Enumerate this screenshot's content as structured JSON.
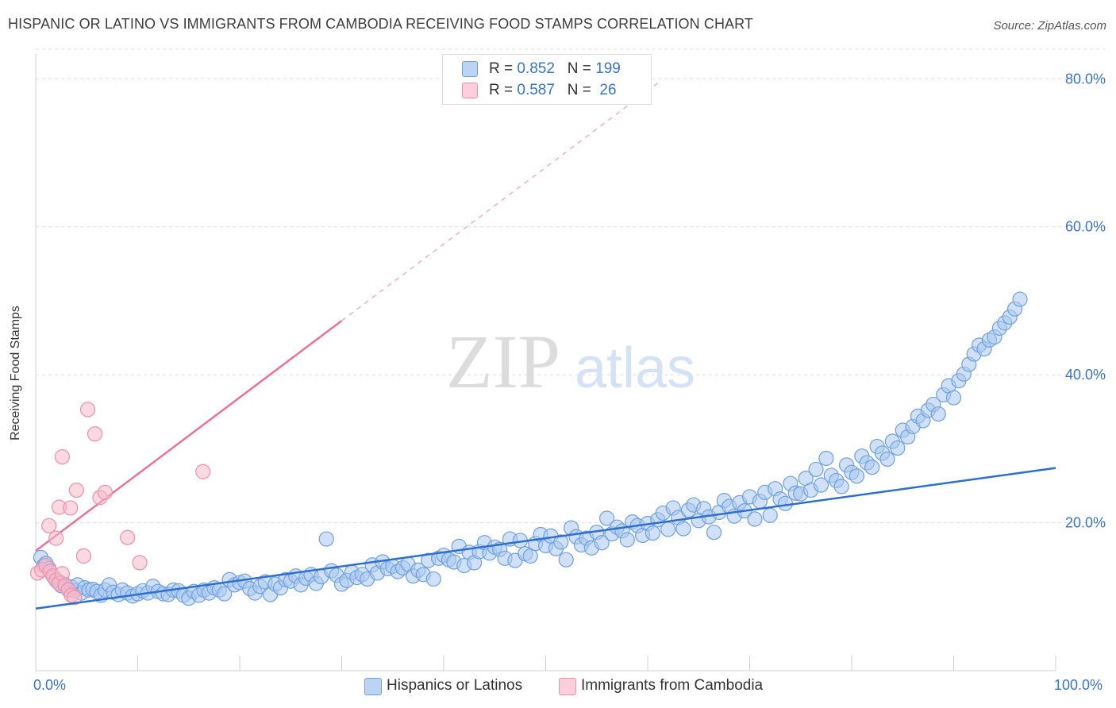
{
  "header": {
    "title": "HISPANIC OR LATINO VS IMMIGRANTS FROM CAMBODIA RECEIVING FOOD STAMPS CORRELATION CHART",
    "source": "Source: ZipAtlas.com"
  },
  "watermark": {
    "zip": "ZIP",
    "atlas": "atlas"
  },
  "legend": {
    "rows": [
      {
        "r_label": "R = ",
        "r_value": "0.852",
        "n_label": "N = ",
        "n_value": "199",
        "color": "#a9c8f0"
      },
      {
        "r_label": "R = ",
        "r_value": "0.587",
        "n_label": "N = ",
        "n_value": " 26",
        "color": "#f7b9ca"
      }
    ]
  },
  "chart_data": {
    "type": "scatter",
    "title": "HISPANIC OR LATINO VS IMMIGRANTS FROM CAMBODIA RECEIVING FOOD STAMPS CORRELATION CHART",
    "xlabel": "",
    "ylabel": "Receiving Food Stamps",
    "xlim": [
      0,
      100
    ],
    "ylim": [
      0,
      84
    ],
    "x_tick_labels": [
      "0.0%",
      "100.0%"
    ],
    "y_ticks": [
      20,
      40,
      60,
      80
    ],
    "y_tick_labels": [
      "20.0%",
      "40.0%",
      "60.0%",
      "80.0%"
    ],
    "grid": "horizontal dashed",
    "legend_position": "top-center",
    "series": [
      {
        "name": "Hispanics or Latinos",
        "color": "#6fa0dd",
        "fill": "#a9c8f0",
        "trendline": {
          "x": [
            0,
            100
          ],
          "y": [
            8.4,
            27.4
          ],
          "style": "solid"
        },
        "points": [
          [
            0.5,
            15.3
          ],
          [
            0.8,
            14.2
          ],
          [
            1.0,
            14.5
          ],
          [
            1.3,
            13.8
          ],
          [
            1.8,
            12.6
          ],
          [
            2.2,
            12.1
          ],
          [
            2.5,
            11.5
          ],
          [
            2.8,
            11.7
          ],
          [
            3.2,
            11.0
          ],
          [
            3.5,
            11.3
          ],
          [
            3.8,
            10.8
          ],
          [
            4.1,
            11.6
          ],
          [
            4.5,
            10.5
          ],
          [
            4.8,
            11.2
          ],
          [
            5.2,
            10.9
          ],
          [
            5.6,
            11.0
          ],
          [
            6.0,
            10.7
          ],
          [
            6.4,
            10.2
          ],
          [
            6.8,
            10.9
          ],
          [
            7.2,
            11.6
          ],
          [
            7.6,
            10.6
          ],
          [
            8.1,
            10.3
          ],
          [
            8.5,
            10.9
          ],
          [
            9.0,
            10.5
          ],
          [
            9.5,
            10.1
          ],
          [
            10.0,
            10.4
          ],
          [
            10.5,
            10.8
          ],
          [
            11.0,
            10.5
          ],
          [
            11.5,
            11.4
          ],
          [
            12.0,
            10.7
          ],
          [
            12.5,
            10.4
          ],
          [
            13.0,
            10.3
          ],
          [
            13.5,
            10.9
          ],
          [
            14.0,
            10.8
          ],
          [
            14.5,
            10.2
          ],
          [
            15.0,
            9.8
          ],
          [
            15.5,
            10.7
          ],
          [
            16.0,
            10.2
          ],
          [
            16.5,
            10.9
          ],
          [
            17.0,
            10.5
          ],
          [
            17.5,
            11.2
          ],
          [
            18.0,
            10.9
          ],
          [
            18.5,
            10.4
          ],
          [
            19.0,
            12.3
          ],
          [
            19.5,
            11.6
          ],
          [
            20.0,
            11.9
          ],
          [
            20.5,
            12.1
          ],
          [
            21.0,
            11.1
          ],
          [
            21.5,
            10.5
          ],
          [
            22.0,
            11.4
          ],
          [
            22.5,
            12.0
          ],
          [
            23.0,
            10.3
          ],
          [
            23.5,
            11.7
          ],
          [
            24.0,
            11.2
          ],
          [
            24.5,
            12.3
          ],
          [
            25.0,
            12.1
          ],
          [
            25.5,
            12.8
          ],
          [
            26.0,
            11.6
          ],
          [
            26.5,
            12.5
          ],
          [
            27.0,
            13.0
          ],
          [
            27.5,
            11.8
          ],
          [
            28.0,
            12.7
          ],
          [
            28.5,
            17.8
          ],
          [
            29.0,
            13.5
          ],
          [
            29.5,
            12.9
          ],
          [
            30.0,
            11.7
          ],
          [
            30.5,
            12.2
          ],
          [
            31.0,
            13.3
          ],
          [
            31.5,
            12.6
          ],
          [
            32.0,
            13.0
          ],
          [
            32.5,
            12.4
          ],
          [
            33.0,
            14.3
          ],
          [
            33.5,
            13.2
          ],
          [
            34.0,
            14.7
          ],
          [
            34.5,
            13.8
          ],
          [
            35.0,
            14.1
          ],
          [
            35.5,
            13.4
          ],
          [
            36.0,
            13.9
          ],
          [
            36.5,
            14.4
          ],
          [
            37.0,
            12.8
          ],
          [
            37.5,
            13.6
          ],
          [
            38.0,
            13.0
          ],
          [
            38.5,
            14.9
          ],
          [
            39.0,
            12.4
          ],
          [
            39.5,
            15.2
          ],
          [
            40.0,
            15.6
          ],
          [
            40.5,
            15.0
          ],
          [
            41.0,
            14.7
          ],
          [
            41.5,
            16.8
          ],
          [
            42.0,
            14.2
          ],
          [
            42.5,
            16.0
          ],
          [
            43.0,
            14.6
          ],
          [
            43.5,
            16.1
          ],
          [
            44.0,
            17.3
          ],
          [
            44.5,
            15.9
          ],
          [
            45.0,
            16.7
          ],
          [
            45.5,
            16.4
          ],
          [
            46.0,
            15.2
          ],
          [
            46.5,
            17.8
          ],
          [
            47.0,
            14.9
          ],
          [
            47.5,
            17.6
          ],
          [
            48.0,
            15.8
          ],
          [
            48.5,
            15.5
          ],
          [
            49.0,
            17.2
          ],
          [
            49.5,
            18.4
          ],
          [
            50.0,
            16.9
          ],
          [
            50.5,
            18.2
          ],
          [
            51.0,
            16.5
          ],
          [
            51.5,
            17.4
          ],
          [
            52.0,
            15.0
          ],
          [
            52.5,
            19.3
          ],
          [
            53.0,
            18.1
          ],
          [
            53.5,
            17.0
          ],
          [
            54.0,
            17.9
          ],
          [
            54.5,
            16.6
          ],
          [
            55.0,
            18.7
          ],
          [
            55.5,
            17.3
          ],
          [
            56.0,
            20.6
          ],
          [
            56.5,
            18.5
          ],
          [
            57.0,
            19.4
          ],
          [
            57.5,
            18.9
          ],
          [
            58.0,
            17.7
          ],
          [
            58.5,
            20.1
          ],
          [
            59.0,
            19.6
          ],
          [
            59.5,
            18.3
          ],
          [
            60.0,
            19.9
          ],
          [
            60.5,
            18.6
          ],
          [
            61.0,
            20.4
          ],
          [
            61.5,
            21.3
          ],
          [
            62.0,
            19.1
          ],
          [
            62.5,
            22.0
          ],
          [
            63.0,
            20.7
          ],
          [
            63.5,
            19.2
          ],
          [
            64.0,
            21.7
          ],
          [
            64.5,
            22.4
          ],
          [
            65.0,
            20.3
          ],
          [
            65.5,
            21.9
          ],
          [
            66.0,
            20.8
          ],
          [
            66.5,
            18.7
          ],
          [
            67.0,
            21.4
          ],
          [
            67.5,
            23.0
          ],
          [
            68.0,
            22.2
          ],
          [
            68.5,
            20.9
          ],
          [
            69.0,
            22.7
          ],
          [
            69.5,
            21.6
          ],
          [
            70.0,
            23.5
          ],
          [
            70.5,
            20.5
          ],
          [
            71.0,
            22.9
          ],
          [
            71.5,
            24.1
          ],
          [
            72.0,
            21.0
          ],
          [
            72.5,
            24.6
          ],
          [
            73.0,
            23.2
          ],
          [
            73.5,
            22.6
          ],
          [
            74.0,
            25.3
          ],
          [
            74.5,
            24.0
          ],
          [
            75.0,
            23.9
          ],
          [
            75.5,
            26.0
          ],
          [
            76.0,
            24.4
          ],
          [
            76.5,
            27.2
          ],
          [
            77.0,
            25.1
          ],
          [
            77.5,
            28.7
          ],
          [
            78.0,
            26.4
          ],
          [
            78.5,
            25.7
          ],
          [
            79.0,
            24.9
          ],
          [
            79.5,
            27.8
          ],
          [
            80.0,
            26.8
          ],
          [
            80.5,
            26.3
          ],
          [
            81.0,
            29.0
          ],
          [
            81.5,
            28.1
          ],
          [
            82.0,
            27.5
          ],
          [
            82.5,
            30.3
          ],
          [
            83.0,
            29.4
          ],
          [
            83.5,
            28.6
          ],
          [
            84.0,
            31.0
          ],
          [
            84.5,
            30.1
          ],
          [
            85.0,
            32.5
          ],
          [
            85.5,
            31.6
          ],
          [
            86.0,
            33.0
          ],
          [
            86.5,
            34.4
          ],
          [
            87.0,
            33.8
          ],
          [
            87.5,
            35.2
          ],
          [
            88.0,
            36.0
          ],
          [
            88.5,
            34.7
          ],
          [
            89.0,
            37.3
          ],
          [
            89.5,
            38.5
          ],
          [
            90.0,
            36.9
          ],
          [
            90.5,
            39.2
          ],
          [
            91.0,
            40.1
          ],
          [
            91.5,
            41.4
          ],
          [
            92.0,
            42.8
          ],
          [
            92.5,
            44.0
          ],
          [
            93.0,
            43.5
          ],
          [
            93.5,
            44.7
          ],
          [
            94.0,
            45.1
          ],
          [
            94.5,
            46.3
          ],
          [
            95.0,
            47.0
          ],
          [
            95.5,
            47.8
          ],
          [
            96.0,
            48.9
          ],
          [
            96.5,
            50.2
          ]
        ]
      },
      {
        "name": "Immigrants from Cambodia",
        "color": "#ef8fab",
        "fill": "#f7b9ca",
        "trendline": {
          "x": [
            0,
            30
          ],
          "y": [
            16.2,
            47.3
          ],
          "dashed_extension_x": [
            30,
            61
          ],
          "style": "solid"
        },
        "points": [
          [
            0.2,
            13.2
          ],
          [
            0.6,
            13.6
          ],
          [
            1.0,
            14.2
          ],
          [
            1.4,
            13.4
          ],
          [
            1.7,
            12.8
          ],
          [
            2.0,
            12.2
          ],
          [
            2.3,
            11.8
          ],
          [
            2.6,
            13.1
          ],
          [
            2.9,
            11.5
          ],
          [
            3.2,
            10.9
          ],
          [
            3.5,
            10.2
          ],
          [
            3.8,
            9.9
          ],
          [
            1.3,
            19.6
          ],
          [
            2.0,
            17.9
          ],
          [
            2.3,
            22.1
          ],
          [
            2.6,
            28.9
          ],
          [
            3.4,
            22.0
          ],
          [
            4.0,
            24.4
          ],
          [
            4.7,
            15.5
          ],
          [
            5.1,
            35.3
          ],
          [
            5.8,
            32.0
          ],
          [
            6.3,
            23.4
          ],
          [
            6.8,
            24.1
          ],
          [
            9.0,
            18.0
          ],
          [
            10.2,
            14.6
          ],
          [
            16.4,
            26.9
          ]
        ]
      }
    ]
  }
}
